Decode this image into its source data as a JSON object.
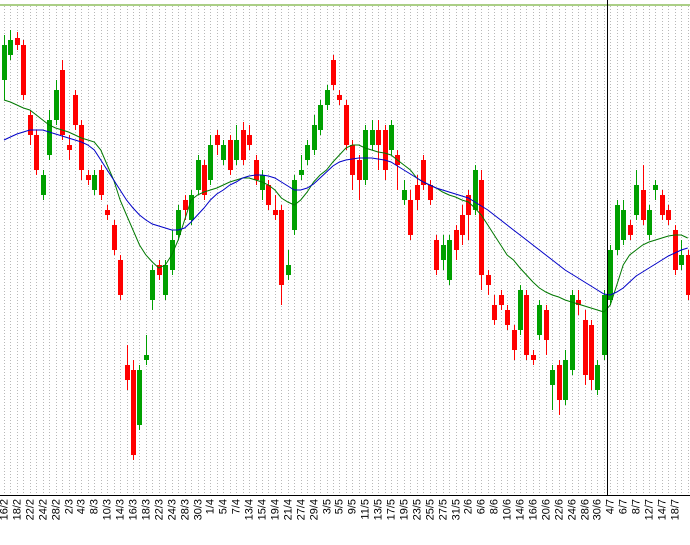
{
  "chart_data": {
    "type": "candlestick",
    "categories": [
      "16/2",
      null,
      "18/2",
      null,
      "22/2",
      null,
      "24/2",
      null,
      "28/2",
      null,
      "2/3",
      null,
      "4/3",
      null,
      "8/3",
      null,
      "10/3",
      null,
      "14/3",
      null,
      "16/3",
      null,
      "18/3",
      null,
      "22/3",
      null,
      "24/3",
      null,
      "28/3",
      null,
      "30/3",
      null,
      "1/4",
      null,
      "5/4",
      null,
      "7/4",
      null,
      "13/4",
      null,
      "15/4",
      null,
      "19/4",
      null,
      "21/4",
      null,
      "27/4",
      null,
      "29/4",
      null,
      "3/5",
      null,
      "5/5",
      null,
      "9/5",
      null,
      "11/5",
      null,
      "13/5",
      null,
      "17/5",
      null,
      "19/5",
      null,
      "23/5",
      null,
      "25/5",
      null,
      "27/5",
      null,
      "31/5",
      null,
      "2/6",
      null,
      "6/6",
      null,
      "8/6",
      null,
      "10/6",
      null,
      "14/6",
      null,
      "16/6",
      null,
      "20/6",
      null,
      "22/6",
      null,
      "24/6",
      null,
      "28/6",
      null,
      "30/6",
      null,
      "4/7",
      null,
      "6/7",
      null,
      "8/7",
      null,
      "12/7",
      null,
      "14/7",
      null,
      "18/7",
      null,
      null
    ],
    "open": [
      420,
      445,
      462,
      455,
      385,
      365,
      305,
      345,
      380,
      430,
      355,
      405,
      375,
      325,
      310,
      330,
      290,
      275,
      240,
      135,
      130,
      75,
      140,
      200,
      235,
      205,
      230,
      265,
      300,
      280,
      310,
      335,
      320,
      365,
      340,
      360,
      340,
      370,
      365,
      340,
      310,
      315,
      290,
      290,
      225,
      270,
      325,
      340,
      350,
      370,
      395,
      440,
      405,
      395,
      355,
      340,
      320,
      355,
      370,
      370,
      350,
      345,
      300,
      300,
      315,
      340,
      315,
      260,
      240,
      220,
      270,
      285,
      305,
      290,
      320,
      225,
      195,
      205,
      190,
      170,
      170,
      205,
      145,
      165,
      190,
      115,
      135,
      100,
      130,
      200,
      180,
      175,
      110,
      145,
      200,
      250,
      260,
      275,
      285,
      310,
      265,
      310,
      305,
      290,
      270,
      235,
      245
    ],
    "high": [
      465,
      470,
      468,
      460,
      390,
      370,
      330,
      390,
      420,
      440,
      365,
      410,
      380,
      330,
      330,
      335,
      295,
      280,
      245,
      155,
      140,
      135,
      165,
      235,
      240,
      240,
      270,
      295,
      305,
      310,
      345,
      340,
      365,
      370,
      360,
      365,
      375,
      378,
      375,
      345,
      330,
      320,
      305,
      295,
      250,
      325,
      345,
      360,
      385,
      400,
      415,
      445,
      410,
      400,
      360,
      345,
      375,
      380,
      380,
      375,
      380,
      350,
      320,
      310,
      325,
      345,
      320,
      265,
      265,
      265,
      275,
      295,
      310,
      335,
      330,
      230,
      205,
      210,
      195,
      175,
      215,
      210,
      150,
      200,
      195,
      135,
      140,
      150,
      210,
      210,
      190,
      180,
      140,
      210,
      255,
      300,
      300,
      280,
      330,
      335,
      295,
      320,
      310,
      295,
      275,
      260,
      250
    ],
    "low": [
      400,
      440,
      450,
      400,
      355,
      325,
      300,
      340,
      375,
      360,
      340,
      370,
      320,
      315,
      305,
      300,
      280,
      245,
      200,
      110,
      40,
      70,
      135,
      190,
      220,
      200,
      225,
      260,
      280,
      275,
      305,
      300,
      315,
      345,
      335,
      325,
      335,
      335,
      350,
      315,
      300,
      290,
      280,
      195,
      220,
      265,
      320,
      335,
      345,
      365,
      390,
      410,
      395,
      350,
      310,
      300,
      315,
      350,
      330,
      320,
      345,
      310,
      295,
      260,
      290,
      310,
      295,
      225,
      230,
      215,
      240,
      255,
      260,
      285,
      210,
      205,
      175,
      190,
      170,
      140,
      165,
      140,
      135,
      160,
      145,
      90,
      85,
      95,
      125,
      185,
      115,
      110,
      105,
      140,
      195,
      245,
      255,
      260,
      280,
      275,
      260,
      300,
      280,
      275,
      225,
      230,
      200
    ],
    "close": [
      455,
      460,
      455,
      405,
      365,
      330,
      325,
      380,
      410,
      365,
      350,
      375,
      330,
      320,
      325,
      305,
      285,
      250,
      205,
      120,
      45,
      130,
      145,
      230,
      225,
      235,
      260,
      290,
      290,
      305,
      340,
      305,
      355,
      355,
      355,
      330,
      360,
      340,
      355,
      320,
      325,
      295,
      285,
      215,
      235,
      320,
      330,
      355,
      375,
      395,
      410,
      415,
      400,
      355,
      325,
      320,
      370,
      370,
      355,
      330,
      375,
      335,
      310,
      265,
      300,
      315,
      300,
      230,
      255,
      260,
      250,
      265,
      285,
      330,
      225,
      215,
      180,
      195,
      175,
      150,
      210,
      145,
      140,
      195,
      160,
      130,
      100,
      140,
      205,
      195,
      125,
      120,
      135,
      205,
      250,
      295,
      290,
      265,
      315,
      280,
      290,
      315,
      285,
      280,
      230,
      245,
      205
    ],
    "up_color": "#00a000",
    "down_color": "#ff0000",
    "series": [
      {
        "color": "#007800",
        "values": [
          400,
          398,
          395,
          392,
          390,
          385,
          380,
          375,
          372,
          370,
          368,
          365,
          362,
          360,
          358,
          350,
          335,
          320,
          300,
          285,
          270,
          255,
          245,
          238,
          232,
          235,
          245,
          260,
          280,
          300,
          305,
          308,
          310,
          312,
          315,
          318,
          320,
          322,
          322,
          320,
          318,
          315,
          310,
          302,
          298,
          295,
          300,
          308,
          318,
          325,
          330,
          338,
          345,
          352,
          355,
          355,
          352,
          350,
          348,
          347,
          345,
          340,
          335,
          330,
          322,
          318,
          315,
          312,
          308,
          305,
          303,
          300,
          298,
          292,
          285,
          275,
          265,
          255,
          245,
          240,
          232,
          225,
          218,
          212,
          208,
          205,
          203,
          200,
          198,
          196,
          194,
          192,
          190,
          188,
          195,
          215,
          235,
          245,
          250,
          255,
          258,
          260,
          262,
          264,
          265,
          265,
          262
        ]
      },
      {
        "color": "#0000c8",
        "values": [
          360,
          363,
          366,
          368,
          370,
          370,
          370,
          368,
          366,
          364,
          362,
          360,
          358,
          355,
          350,
          340,
          330,
          320,
          310,
          300,
          292,
          285,
          280,
          276,
          274,
          272,
          270,
          270,
          272,
          278,
          285,
          292,
          300,
          306,
          310,
          315,
          318,
          322,
          324,
          325,
          325,
          324,
          322,
          318,
          314,
          310,
          310,
          312,
          316,
          322,
          328,
          334,
          338,
          340,
          341,
          342,
          342,
          342,
          341,
          340,
          338,
          334,
          330,
          326,
          322,
          318,
          315,
          312,
          310,
          308,
          306,
          304,
          302,
          298,
          294,
          290,
          285,
          280,
          275,
          270,
          265,
          260,
          255,
          250,
          245,
          240,
          235,
          230,
          226,
          222,
          218,
          214,
          210,
          206,
          205,
          208,
          212,
          218,
          224,
          228,
          232,
          236,
          240,
          244,
          247,
          250,
          252
        ]
      }
    ],
    "ylim": [
      0,
      500
    ]
  }
}
